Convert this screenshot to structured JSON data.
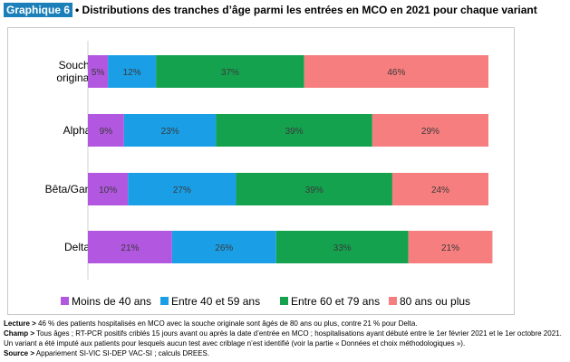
{
  "header": {
    "badge": "Graphique 6",
    "title": "• Distributions des tranches d’âge parmi les entrées en MCO en 2021 pour chaque variant"
  },
  "chart_data": {
    "type": "bar",
    "orientation": "horizontal",
    "stacked": true,
    "percent": true,
    "title": "Distributions des tranches d’âge parmi les entrées en MCO en 2021 pour chaque variant",
    "categories": [
      "Souche originale",
      "Alpha",
      "Bêta/Gamma",
      "Delta"
    ],
    "category_lines": [
      [
        "Souche",
        "originale"
      ],
      [
        "Alpha"
      ],
      [
        "Bêta/Gamma"
      ],
      [
        "Delta"
      ]
    ],
    "series": [
      {
        "name": "Moins de 40 ans",
        "color": "#b257e0",
        "values": [
          5,
          9,
          10,
          21
        ]
      },
      {
        "name": "Entre 40 et 59 ans",
        "color": "#1a9fe6",
        "values": [
          12,
          23,
          27,
          26
        ]
      },
      {
        "name": "Entre 60 et 79 ans",
        "color": "#14a24f",
        "values": [
          37,
          39,
          39,
          33
        ]
      },
      {
        "name": "80 ans ou plus",
        "color": "#f77e7e",
        "values": [
          46,
          29,
          24,
          21
        ]
      }
    ],
    "value_suffix": "%",
    "legend_position": "bottom",
    "grid": false,
    "xlim": [
      0,
      100
    ]
  },
  "notes": {
    "lecture_label": "Lecture >",
    "lecture_text": "46 % des patients hospitalisés en MCO avec la souche originale sont âgés de 80 ans ou plus, contre 21 % pour Delta.",
    "champ_label": "Champ >",
    "champ_text": "Tous âges ; RT-PCR positifs criblés 15 jours avant ou après la date d’entrée en MCO ; hospitalisations ayant débuté entre le 1er février 2021 et le 1er octobre 2021. Un variant a été imputé aux patients pour lesquels aucun test avec criblage n’est identifié (voir la partie « Données et choix méthodologiques »).",
    "source_label": "Source >",
    "source_text": "Appariement SI-VIC SI-DEP VAC-SI ; calculs DREES."
  }
}
